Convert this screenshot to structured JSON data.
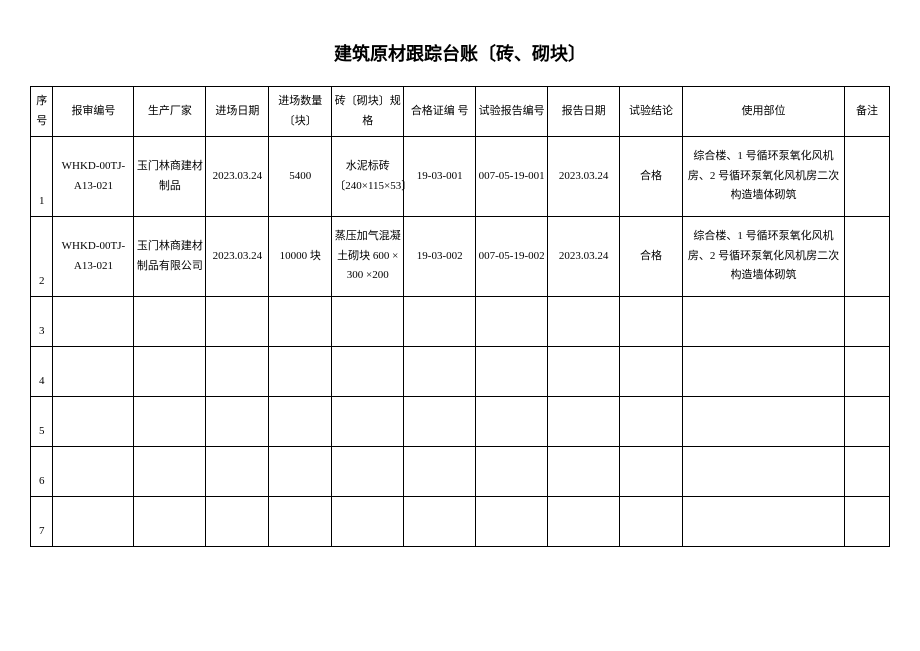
{
  "title": "建筑原材跟踪台账〔砖、砌块〕",
  "headers": {
    "seq": "序号",
    "report_no": "报审编号",
    "manufacturer": "生产厂家",
    "date_in": "进场日期",
    "quantity": "进场数量〔块〕",
    "spec": "砖〔砌块〕规格",
    "cert_no": "合格证编 号",
    "test_report_no": "试验报告编号",
    "report_date": "报告日期",
    "test_result": "试验结论",
    "usage": "使用部位",
    "remark": "备注"
  },
  "rows": [
    {
      "seq": "1",
      "report_no": "WHKD-00TJ-A13-021",
      "manufacturer": "玉门林商建材制品",
      "date_in": "2023.03.24",
      "quantity": "5400",
      "spec": "水泥标砖〔240×115×53〕",
      "cert_no": "19-03-001",
      "test_report_no": "007-05-19-001",
      "report_date": "2023.03.24",
      "test_result": "合格",
      "usage": "综合楼、1 号循环泵氧化风机房、2 号循环泵氧化风机房二次构造墙体砌筑",
      "remark": ""
    },
    {
      "seq": "2",
      "report_no": "WHKD-00TJ-A13-021",
      "manufacturer": "玉门林商建材制品有限公司",
      "date_in": "2023.03.24",
      "quantity": "10000 块",
      "spec": "蒸压加气混凝土砌块 600 × 300 ×200",
      "cert_no": "19-03-002",
      "test_report_no": "007-05-19-002",
      "report_date": "2023.03.24",
      "test_result": "合格",
      "usage": "综合楼、1 号循环泵氧化风机房、2 号循环泵氧化风机房二次构造墙体砌筑",
      "remark": ""
    },
    {
      "seq": "3",
      "report_no": "",
      "manufacturer": "",
      "date_in": "",
      "quantity": "",
      "spec": "",
      "cert_no": "",
      "test_report_no": "",
      "report_date": "",
      "test_result": "",
      "usage": "",
      "remark": ""
    },
    {
      "seq": "4",
      "report_no": "",
      "manufacturer": "",
      "date_in": "",
      "quantity": "",
      "spec": "",
      "cert_no": "",
      "test_report_no": "",
      "report_date": "",
      "test_result": "",
      "usage": "",
      "remark": ""
    },
    {
      "seq": "5",
      "report_no": "",
      "manufacturer": "",
      "date_in": "",
      "quantity": "",
      "spec": "",
      "cert_no": "",
      "test_report_no": "",
      "report_date": "",
      "test_result": "",
      "usage": "",
      "remark": ""
    },
    {
      "seq": "6",
      "report_no": "",
      "manufacturer": "",
      "date_in": "",
      "quantity": "",
      "spec": "",
      "cert_no": "",
      "test_report_no": "",
      "report_date": "",
      "test_result": "",
      "usage": "",
      "remark": ""
    },
    {
      "seq": "7",
      "report_no": "",
      "manufacturer": "",
      "date_in": "",
      "quantity": "",
      "spec": "",
      "cert_no": "",
      "test_report_no": "",
      "report_date": "",
      "test_result": "",
      "usage": "",
      "remark": ""
    }
  ]
}
